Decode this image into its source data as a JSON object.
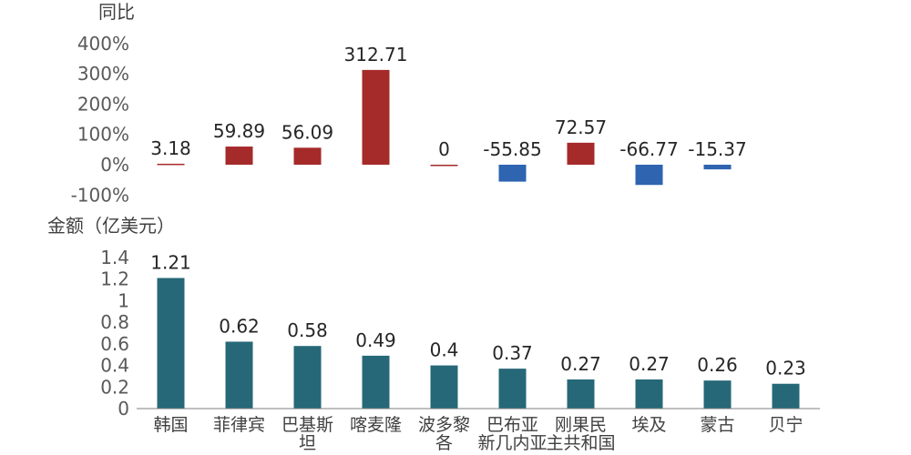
{
  "chart_data": [
    {
      "type": "bar",
      "ylabel": "同比",
      "unit": "%",
      "ylim": [
        -100,
        400
      ],
      "yticks": [
        "400%",
        "300%",
        "200%",
        "100%",
        "0%",
        "-100%"
      ],
      "categories": [
        "韩国",
        "菲律宾",
        "巴基斯坦",
        "喀麦隆",
        "波多黎各",
        "巴布亚新几内亚",
        "刚果民主共和国",
        "埃及",
        "蒙古",
        "贝宁"
      ],
      "values": [
        3.18,
        59.89,
        56.09,
        312.71,
        0,
        -55.85,
        72.57,
        -66.77,
        -15.37,
        null
      ],
      "data_labels": [
        "3.18",
        "59.89",
        "56.09",
        "312.71",
        "0",
        "-55.85",
        "72.57",
        "-66.77",
        "-15.37",
        ""
      ],
      "colors": {
        "positive": "#A52A2A",
        "negative": "#2E64B0"
      }
    },
    {
      "type": "bar",
      "ylabel": "金额（亿美元）",
      "ylim": [
        0,
        1.4
      ],
      "yticks": [
        "1.4",
        "1.2",
        "1",
        "0.8",
        "0.6",
        "0.4",
        "0.2",
        "0"
      ],
      "categories": [
        "韩国",
        "菲律宾",
        "巴基斯坦",
        "喀麦隆",
        "波多黎各",
        "巴布亚新几内亚",
        "刚果民主共和国",
        "埃及",
        "蒙古",
        "贝宁"
      ],
      "values": [
        1.21,
        0.62,
        0.58,
        0.49,
        0.4,
        0.37,
        0.27,
        0.27,
        0.26,
        0.23
      ],
      "data_labels": [
        "1.21",
        "0.62",
        "0.58",
        "0.49",
        "0.4",
        "0.37",
        "0.27",
        "0.27",
        "0.26",
        "0.23"
      ],
      "category_lines": [
        [
          "韩国"
        ],
        [
          "菲律宾"
        ],
        [
          "巴基斯",
          "坦"
        ],
        [
          "喀麦隆"
        ],
        [
          "波多黎",
          "各"
        ],
        [
          "巴布亚",
          "新几内亚"
        ],
        [
          "刚果民",
          "主共和国"
        ],
        [
          "埃及"
        ],
        [
          "蒙古"
        ],
        [
          "贝宁"
        ]
      ],
      "colors": {
        "bar": "#266878"
      }
    }
  ]
}
